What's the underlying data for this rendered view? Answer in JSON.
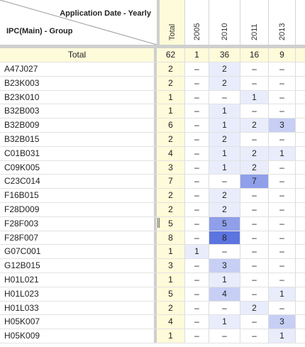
{
  "corner": {
    "column_dimension_label": "Application Date - Yearly",
    "row_dimension_label": "IPC(Main) - Group"
  },
  "columns": [
    "Total",
    "2005",
    "2010",
    "2011",
    "2013"
  ],
  "total_row": {
    "label": "Total",
    "values": [
      "62",
      "1",
      "36",
      "16",
      "9"
    ]
  },
  "rows": [
    {
      "label": "A47J027",
      "values": [
        "2",
        "–",
        "2",
        "–",
        "–"
      ]
    },
    {
      "label": "B23K003",
      "values": [
        "2",
        "–",
        "2",
        "–",
        "–"
      ]
    },
    {
      "label": "B23K010",
      "values": [
        "1",
        "–",
        "–",
        "1",
        "–"
      ]
    },
    {
      "label": "B32B003",
      "values": [
        "1",
        "–",
        "1",
        "–",
        "–"
      ]
    },
    {
      "label": "B32B009",
      "values": [
        "6",
        "–",
        "1",
        "2",
        "3"
      ]
    },
    {
      "label": "B32B015",
      "values": [
        "2",
        "–",
        "2",
        "–",
        "–"
      ]
    },
    {
      "label": "C01B031",
      "values": [
        "4",
        "–",
        "1",
        "2",
        "1"
      ]
    },
    {
      "label": "C09K005",
      "values": [
        "3",
        "–",
        "1",
        "2",
        "–"
      ]
    },
    {
      "label": "C23C014",
      "values": [
        "7",
        "–",
        "–",
        "7",
        "–"
      ]
    },
    {
      "label": "F16B015",
      "values": [
        "2",
        "–",
        "2",
        "–",
        "–"
      ]
    },
    {
      "label": "F28D009",
      "values": [
        "2",
        "–",
        "2",
        "–",
        "–"
      ]
    },
    {
      "label": "F28F003",
      "values": [
        "5",
        "–",
        "5",
        "–",
        "–"
      ]
    },
    {
      "label": "F28F007",
      "values": [
        "8",
        "–",
        "8",
        "–",
        "–"
      ]
    },
    {
      "label": "G07C001",
      "values": [
        "1",
        "1",
        "–",
        "–",
        "–"
      ]
    },
    {
      "label": "G12B015",
      "values": [
        "3",
        "–",
        "3",
        "–",
        "–"
      ]
    },
    {
      "label": "H01L021",
      "values": [
        "1",
        "–",
        "1",
        "–",
        "–"
      ]
    },
    {
      "label": "H01L023",
      "values": [
        "5",
        "–",
        "4",
        "–",
        "1"
      ]
    },
    {
      "label": "H01L033",
      "values": [
        "2",
        "–",
        "–",
        "2",
        "–"
      ]
    },
    {
      "label": "H05K007",
      "values": [
        "4",
        "–",
        "1",
        "–",
        "3"
      ]
    },
    {
      "label": "H05K009",
      "values": [
        "1",
        "–",
        "–",
        "–",
        "1"
      ]
    }
  ],
  "colors": {
    "total_bg": "#fdfbd9",
    "heat_low": "#e9ecfb",
    "heat_mid": "#c7cff5",
    "heat_high": "#8f9fe9",
    "heat_max": "#5c74e0",
    "separator": "#cfcfcf"
  }
}
